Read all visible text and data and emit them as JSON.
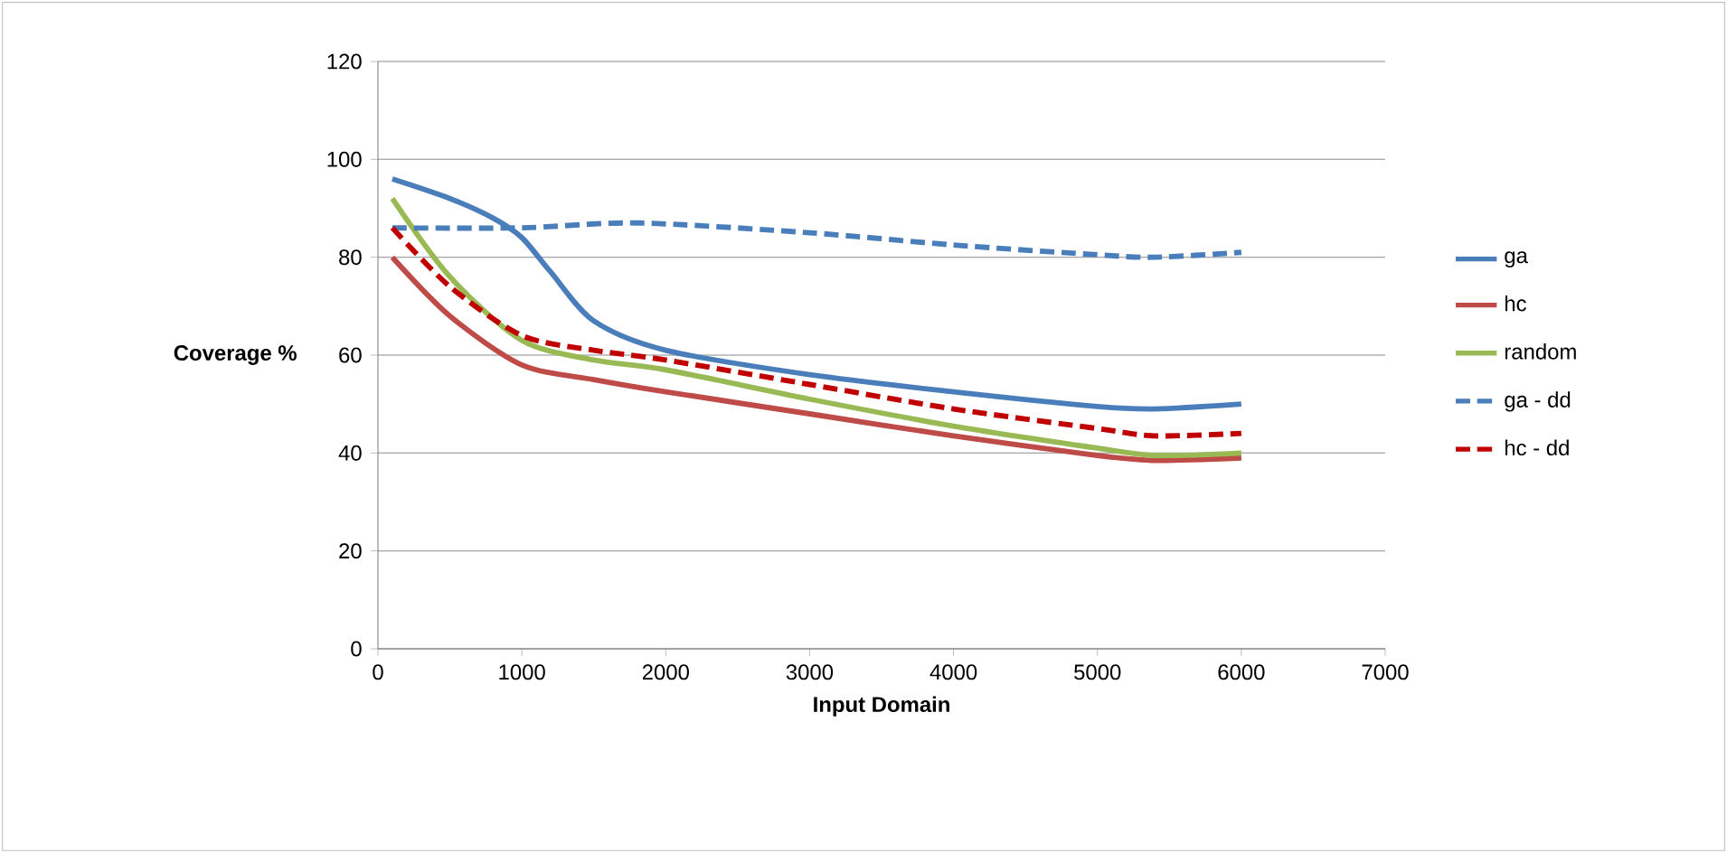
{
  "chart_data": {
    "type": "line",
    "xlabel": "Input Domain",
    "ylabel": "Coverage %",
    "xlim": [
      0,
      7000
    ],
    "xticks": [
      0,
      1000,
      2000,
      3000,
      4000,
      5000,
      6000,
      7000
    ],
    "ylim": [
      0,
      120
    ],
    "yticks": [
      0,
      20,
      40,
      60,
      80,
      100,
      120
    ],
    "grid": "y",
    "legend": "right",
    "marker": "none",
    "series": [
      {
        "name": "ga",
        "color": "#4a7ebb",
        "line_style": "solid",
        "x": [
          100,
          500,
          800,
          1000,
          1200,
          1500,
          2000,
          3000,
          4000,
          5000,
          5400,
          6000
        ],
        "values": [
          96,
          92,
          88,
          84,
          77,
          67,
          61,
          56,
          52.5,
          49.5,
          49,
          50
        ]
      },
      {
        "name": "hc",
        "color": "#be4b48",
        "line_style": "solid",
        "x": [
          100,
          500,
          1000,
          1500,
          2000,
          3000,
          4000,
          5000,
          5400,
          6000
        ],
        "values": [
          80,
          68,
          58,
          55,
          52.5,
          48,
          43.5,
          39.5,
          38.5,
          39
        ]
      },
      {
        "name": "random",
        "color": "#98b954",
        "line_style": "solid",
        "x": [
          100,
          500,
          1000,
          1500,
          2000,
          3000,
          4000,
          5000,
          5400,
          6000
        ],
        "values": [
          92,
          76,
          63,
          59,
          57,
          51,
          45.5,
          41,
          39.5,
          40
        ]
      },
      {
        "name": "ga - dd",
        "color": "#4a7ebb",
        "line_style": "dashed",
        "x": [
          100,
          1000,
          1800,
          3000,
          4000,
          5000,
          5400,
          6000
        ],
        "values": [
          86,
          86,
          87,
          85,
          82.5,
          80.5,
          80,
          81
        ]
      },
      {
        "name": "hc  - dd",
        "color": "#c00000",
        "line_style": "dashed",
        "x": [
          100,
          500,
          1000,
          1500,
          2000,
          3000,
          4000,
          5000,
          5400,
          6000
        ],
        "values": [
          86,
          74,
          64,
          61,
          59,
          54,
          49,
          45,
          43.5,
          44
        ]
      }
    ]
  }
}
